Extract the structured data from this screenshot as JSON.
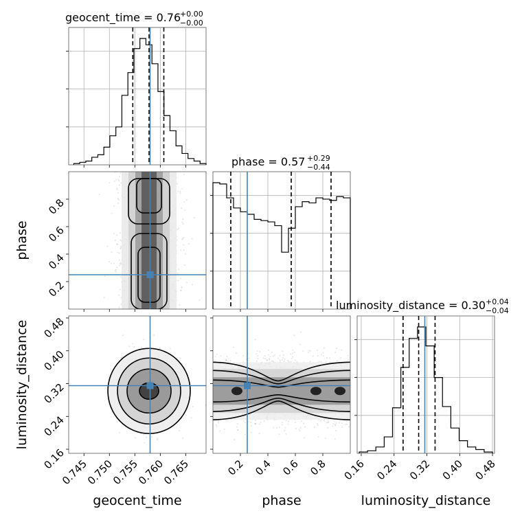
{
  "chart_data": {
    "type": "corner",
    "parameters": [
      "geocent_time",
      "phase",
      "luminosity_distance"
    ],
    "truth_color": "#4682b4",
    "truths": {
      "geocent_time": 0.758,
      "phase": 0.25,
      "luminosity_distance": 0.315
    },
    "titles": [
      {
        "param": "geocent_time",
        "text": "geocent_time = 0.76",
        "plus": "+0.00",
        "minus": "−0.00"
      },
      {
        "param": "phase",
        "text": "phase = 0.57",
        "plus": "+0.29",
        "minus": "−0.44"
      },
      {
        "param": "luminosity_distance",
        "text": "luminosity_distance = 0.30",
        "plus": "+0.04",
        "minus": "−0.04"
      }
    ],
    "axes": {
      "geocent_time": {
        "range": [
          0.742,
          0.769
        ],
        "ticks": [
          0.745,
          0.75,
          0.755,
          0.76,
          0.765
        ],
        "ticklabels": [
          "0.745",
          "0.750",
          "0.755",
          "0.760",
          "0.765"
        ],
        "label": "geocent_time"
      },
      "phase": {
        "range": [
          0.0,
          1.0
        ],
        "ticks": [
          0.2,
          0.4,
          0.6,
          0.8
        ],
        "ticklabels": [
          "0.2",
          "0.4",
          "0.6",
          "0.8"
        ],
        "label": "phase"
      },
      "luminosity_distance": {
        "range": [
          0.15,
          0.485
        ],
        "ticks": [
          0.16,
          0.24,
          0.32,
          0.4,
          0.48
        ],
        "ticklabels": [
          "0.16",
          "0.24",
          "0.32",
          "0.40",
          "0.48"
        ],
        "label": "luminosity_distance"
      }
    },
    "histograms": {
      "geocent_time": {
        "edges_range": [
          0.743,
          0.769
        ],
        "counts": [
          1,
          2,
          3,
          6,
          8,
          14,
          23,
          30,
          55,
          73,
          92,
          100,
          95,
          80,
          58,
          39,
          27,
          15,
          9,
          5,
          3,
          1
        ],
        "quantiles": [
          0.7546,
          0.7578,
          0.7607
        ]
      },
      "phase": {
        "edges_range": [
          0.0,
          1.0
        ],
        "counts": [
          100,
          99,
          88,
          80,
          77,
          75,
          71,
          70,
          69,
          66,
          45,
          64,
          81,
          85,
          84,
          88,
          87,
          86,
          89,
          88
        ],
        "quantiles": [
          0.13,
          0.57,
          0.86
        ]
      },
      "luminosity_distance": {
        "edges_range": [
          0.155,
          0.48
        ],
        "counts": [
          1,
          2,
          5,
          13,
          36,
          68,
          91,
          100,
          85,
          60,
          37,
          20,
          10,
          5,
          3,
          1
        ],
        "quantiles": [
          0.262,
          0.3,
          0.34
        ]
      }
    },
    "grid": true
  }
}
